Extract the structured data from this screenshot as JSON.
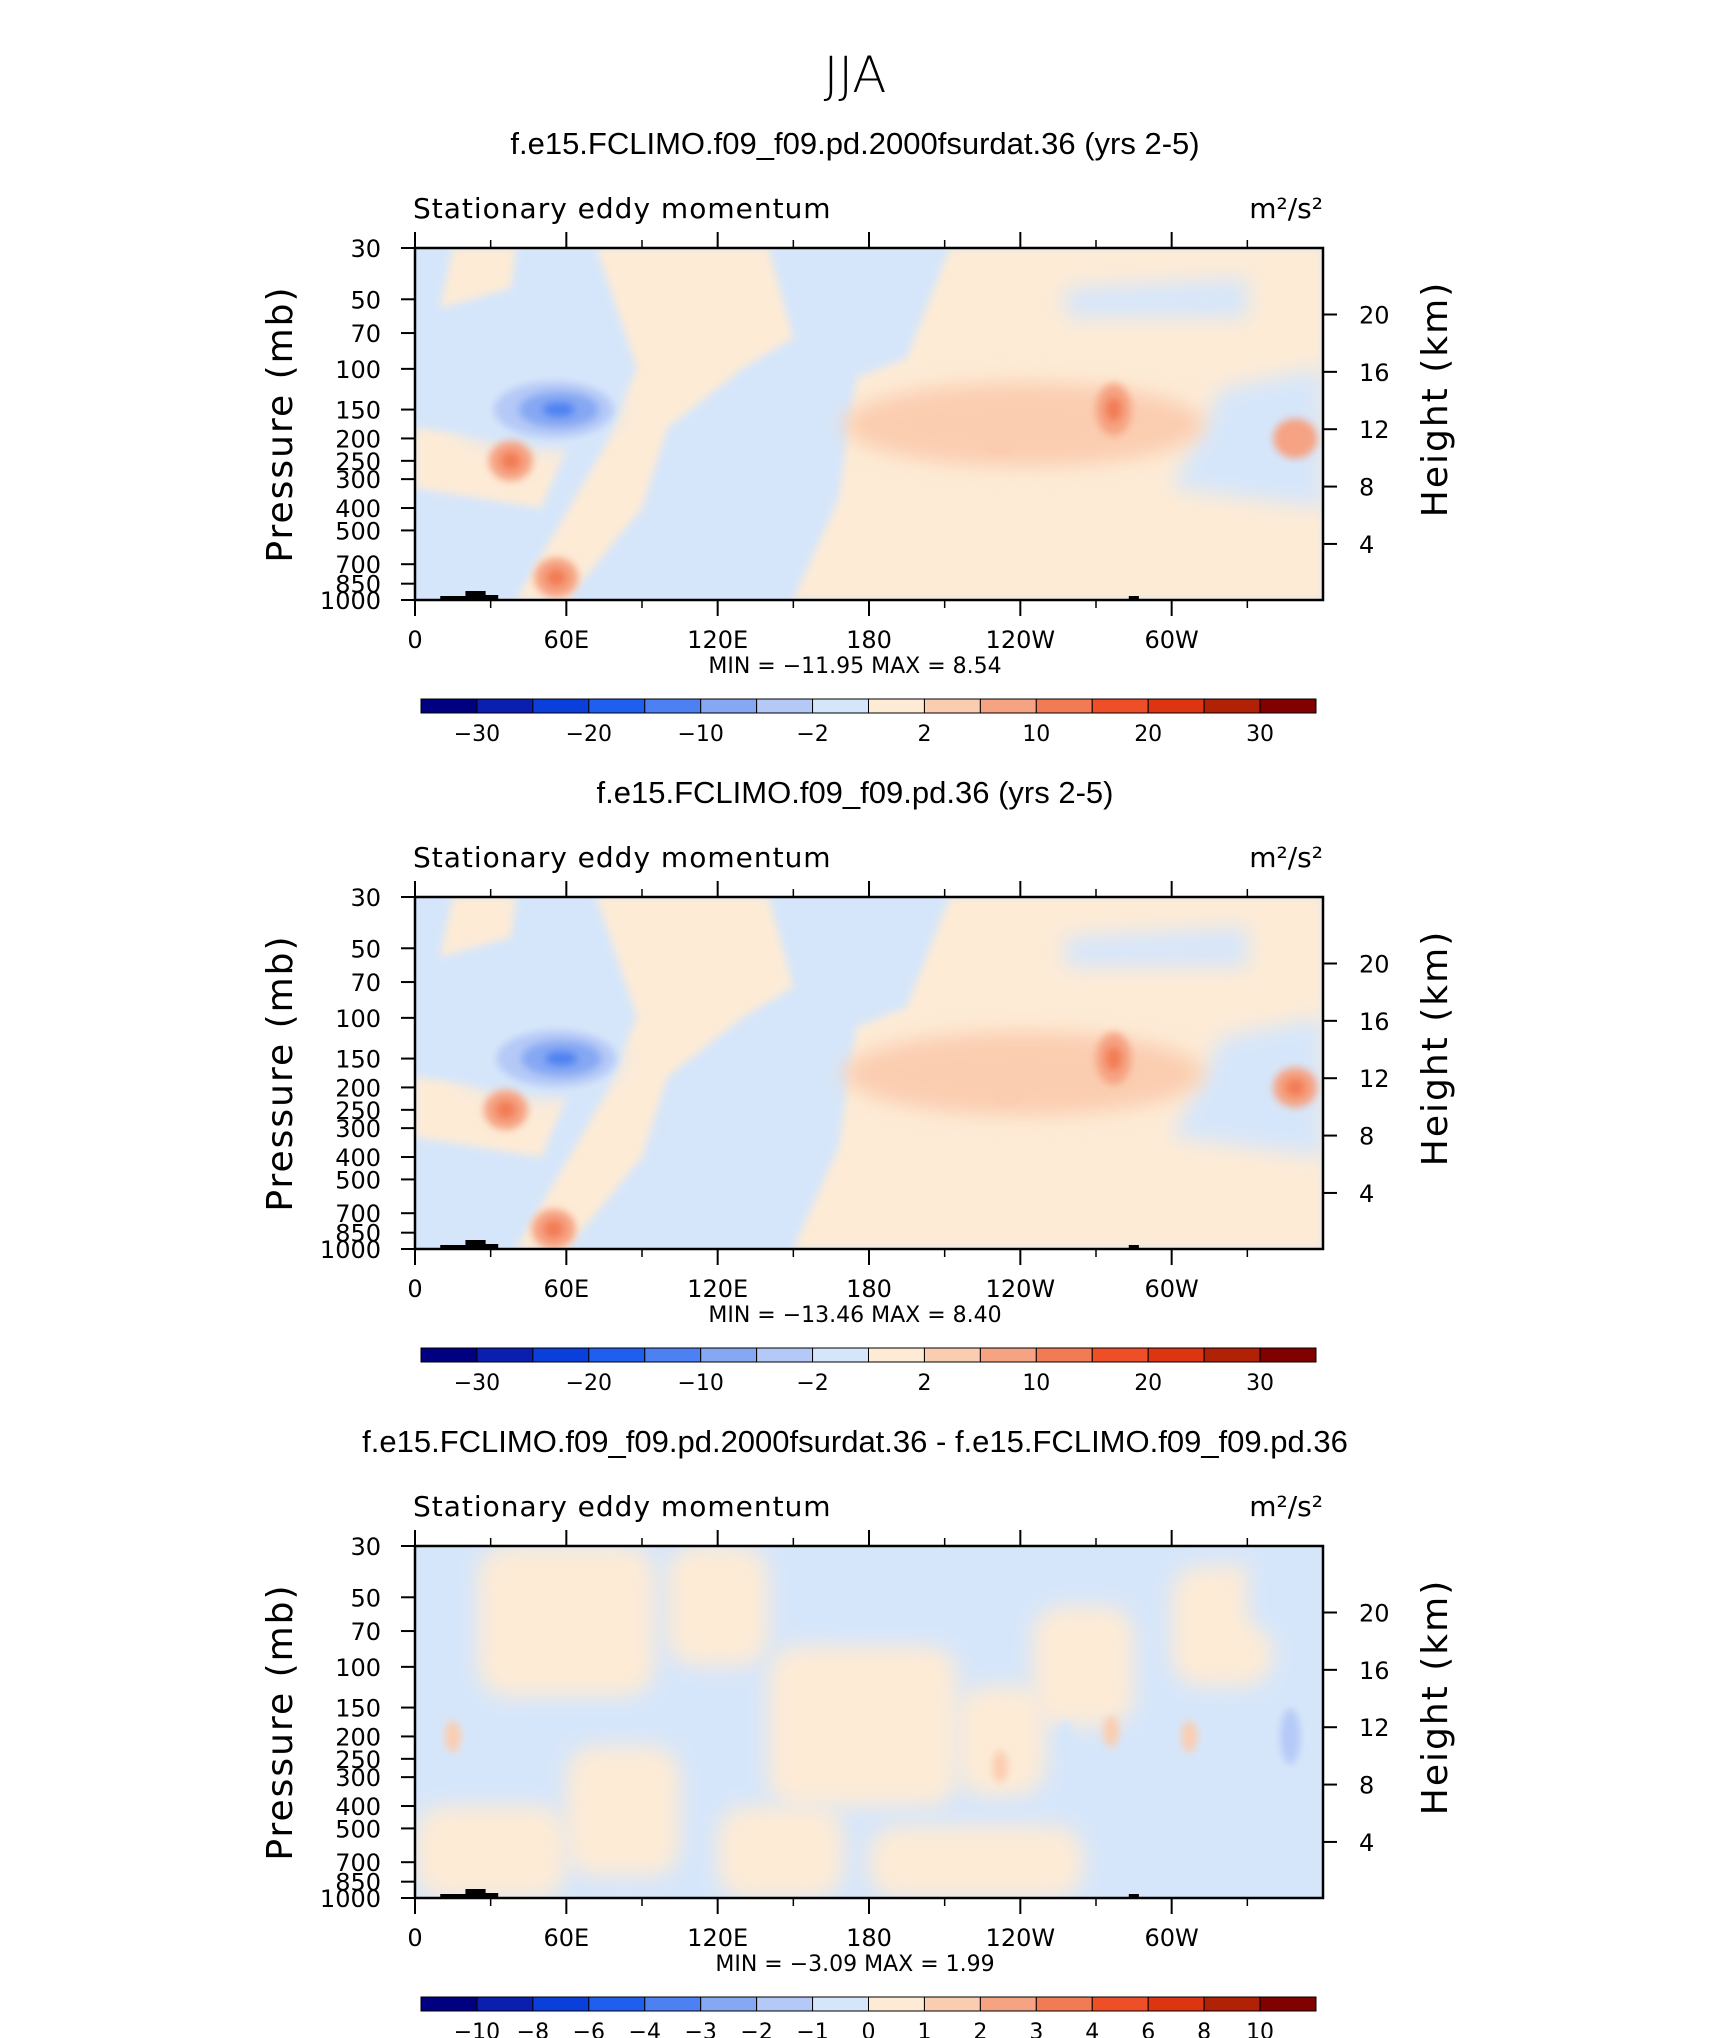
{
  "figure": {
    "title": "JJA"
  },
  "panels": [
    {
      "title": "f.e15.FCLIMO.f09_f09.pd.2000fsurdat.36 (yrs 2-5)",
      "left_label": "Stationary eddy momentum",
      "right_label": "m²/s²",
      "stats": "MIN =  −11.95   MAX =     8.54",
      "colorbar_labels": [
        "−30",
        "−20",
        "−10",
        "−2",
        "2",
        "10",
        "20",
        "30"
      ]
    },
    {
      "title": "f.e15.FCLIMO.f09_f09.pd.36 (yrs 2-5)",
      "left_label": "Stationary eddy momentum",
      "right_label": "m²/s²",
      "stats": "MIN =  −13.46   MAX =     8.40",
      "colorbar_labels": [
        "−30",
        "−20",
        "−10",
        "−2",
        "2",
        "10",
        "20",
        "30"
      ]
    },
    {
      "title": "f.e15.FCLIMO.f09_f09.pd.2000fsurdat.36 - f.e15.FCLIMO.f09_f09.pd.36",
      "left_label": "Stationary eddy momentum",
      "right_label": "m²/s²",
      "stats": "MIN =    −3.09   MAX =     1.99",
      "colorbar_labels": [
        "−10",
        "−8",
        "−6",
        "−4",
        "−3",
        "−2",
        "−1",
        "0",
        "1",
        "2",
        "3",
        "4",
        "6",
        "8",
        "10"
      ]
    }
  ],
  "chart_data": {
    "type": "heatmap",
    "title": "JJA",
    "variable": "Stationary eddy momentum",
    "units": "m²/s²",
    "xlabel": "",
    "ylabel": "Pressure (mb)",
    "ylabel_right": "Height (km)",
    "x_ticks": [
      "0",
      "60E",
      "120E",
      "180",
      "120W",
      "60W"
    ],
    "x_tick_values": [
      0,
      60,
      120,
      180,
      240,
      300
    ],
    "xlim": [
      0,
      360
    ],
    "y_ticks": [
      "30",
      "50",
      "70",
      "100",
      "150",
      "200",
      "250",
      "300",
      "400",
      "500",
      "700",
      "850",
      "1000"
    ],
    "y_tick_values": [
      30,
      50,
      70,
      100,
      150,
      200,
      250,
      300,
      400,
      500,
      700,
      850,
      1000
    ],
    "ylim": [
      1000,
      30
    ],
    "y_right_ticks": [
      "4",
      "8",
      "12",
      "16",
      "20"
    ],
    "y_right_tick_values": [
      4,
      8,
      12,
      16,
      20
    ],
    "colorbar_levels_full": [
      -30,
      -25,
      -20,
      -15,
      -10,
      -5,
      -2,
      -1,
      1,
      2,
      5,
      10,
      15,
      20,
      25,
      30
    ],
    "colorbar_levels_diff": [
      -10,
      -8,
      -6,
      -4,
      -3,
      -2,
      -1,
      0,
      1,
      2,
      3,
      4,
      6,
      8,
      10
    ],
    "colors": [
      "#000080",
      "#0a1eb0",
      "#0a3fdc",
      "#1f5fef",
      "#4d80f2",
      "#86a8f3",
      "#b5c9f7",
      "#d6e6fa",
      "#fdebd6",
      "#fbcdb0",
      "#f6a383",
      "#f27b55",
      "#ef4f28",
      "#dd3412",
      "#b12106",
      "#810000"
    ],
    "series": [
      {
        "name": "f.e15.FCLIMO.f09_f09.pd.2000fsurdat.36 (yrs 2-5)",
        "min": -11.95,
        "max": 8.54,
        "features": [
          {
            "lon": 57,
            "p": 150,
            "value": -11.95
          },
          {
            "lon": 38,
            "p": 250,
            "value": 5
          },
          {
            "lon": 56,
            "p": 800,
            "value": 6
          },
          {
            "lon": 232,
            "p": 190,
            "value": 6
          },
          {
            "lon": 277,
            "p": 150,
            "value": 8.54
          },
          {
            "lon": 349,
            "p": 200,
            "value": 4
          }
        ]
      },
      {
        "name": "f.e15.FCLIMO.f09_f09.pd.36 (yrs 2-5)",
        "min": -13.46,
        "max": 8.4,
        "features": [
          {
            "lon": 58,
            "p": 150,
            "value": -13.46
          },
          {
            "lon": 36,
            "p": 250,
            "value": 5
          },
          {
            "lon": 55,
            "p": 820,
            "value": 6
          },
          {
            "lon": 235,
            "p": 190,
            "value": 6
          },
          {
            "lon": 277,
            "p": 150,
            "value": 8.4
          },
          {
            "lon": 349,
            "p": 200,
            "value": 5
          }
        ]
      },
      {
        "name": "f.e15.FCLIMO.f09_f09.pd.2000fsurdat.36 - f.e15.FCLIMO.f09_f09.pd.36",
        "min": -3.09,
        "max": 1.99,
        "features": [
          {
            "lon": 347,
            "p": 200,
            "value": -3.09
          },
          {
            "lon": 258,
            "p": 200,
            "value": -1.5
          },
          {
            "lon": 204,
            "p": 200,
            "value": -1
          },
          {
            "lon": 276,
            "p": 190,
            "value": 1.99
          },
          {
            "lon": 232,
            "p": 270,
            "value": 1.5
          },
          {
            "lon": 307,
            "p": 200,
            "value": 1.5
          },
          {
            "lon": 15,
            "p": 200,
            "value": 1
          }
        ]
      }
    ]
  }
}
